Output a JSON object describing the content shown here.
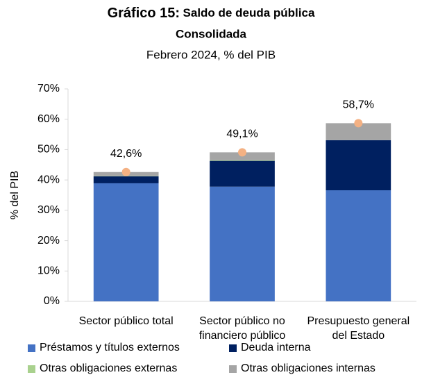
{
  "chart_data": {
    "type": "stacked_bar",
    "title": [
      "Gráfico 15:",
      "Saldo de deuda pública",
      "Consolidada"
    ],
    "subtitle": "Febrero 2024, % del PIB",
    "y_label": "% del PIB",
    "categories": [
      "Sector público total",
      "Sector público no financiero público",
      "Presupuesto general del Estado"
    ],
    "series": [
      {
        "name": "Préstamos y títulos externos",
        "color": "#4472c4",
        "values": [
          38.9,
          37.8,
          36.6
        ]
      },
      {
        "name": "Deuda interna",
        "color": "#002060",
        "values": [
          2.3,
          8.5,
          16.5
        ]
      },
      {
        "name": "Otras obligaciones externas",
        "color": "#a9d18e",
        "values": [
          0.1,
          0.2,
          0.0
        ]
      },
      {
        "name": "Otras obligaciones internas",
        "color": "#a5a5a5",
        "values": [
          1.3,
          2.6,
          5.6
        ]
      }
    ],
    "totals": {
      "color": "#f4b183",
      "values": [
        42.6,
        49.1,
        58.7
      ],
      "value_labels": [
        "42,6%",
        "49,1%",
        "58,7%"
      ]
    },
    "ylim": [
      0,
      70
    ],
    "yticks": [
      {
        "value": 0,
        "label": "0%"
      },
      {
        "value": 10,
        "label": "10%"
      },
      {
        "value": 20,
        "label": "20%"
      },
      {
        "value": 30,
        "label": "30%"
      },
      {
        "value": 40,
        "label": "40%"
      },
      {
        "value": 50,
        "label": "50%"
      },
      {
        "value": 60,
        "label": "60%"
      },
      {
        "value": 70,
        "label": "70%"
      }
    ]
  }
}
